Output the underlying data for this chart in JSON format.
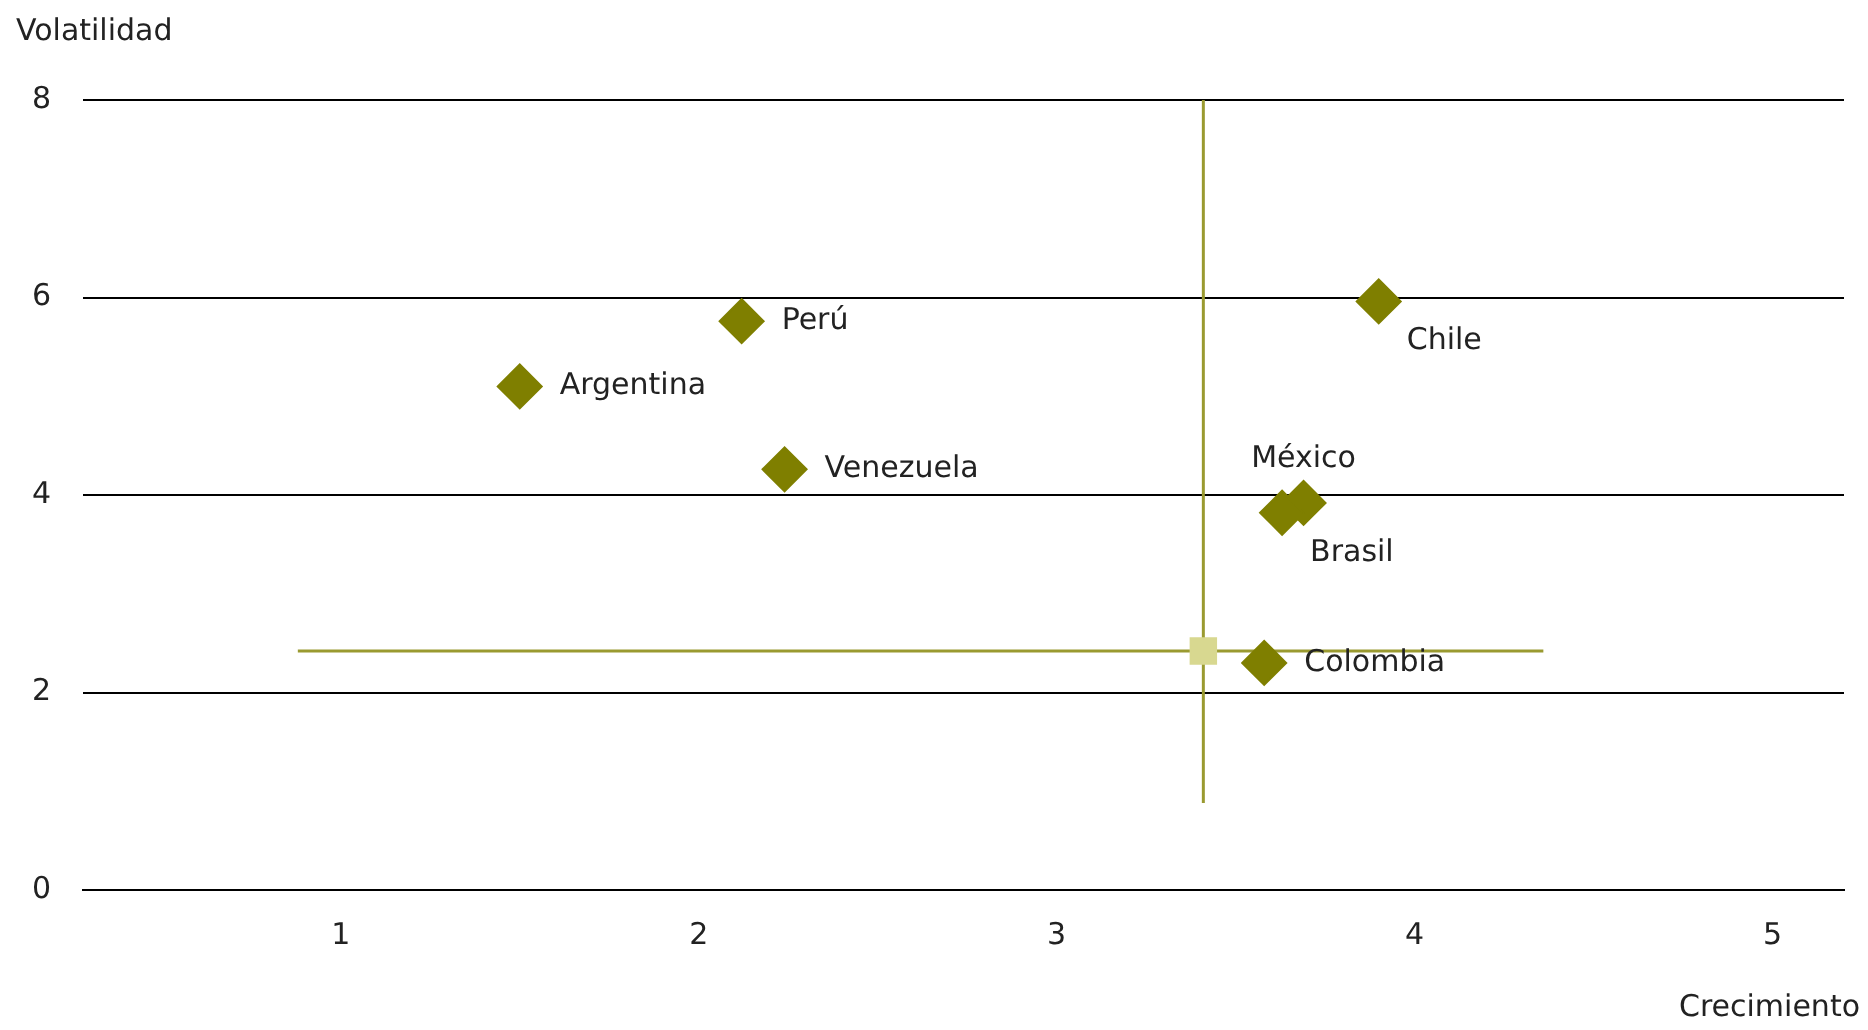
{
  "chart_data": {
    "type": "scatter",
    "xlabel": "Crecimiento",
    "ylabel": "Volatilidad",
    "xlim": [
      0.28,
      5.2
    ],
    "xticks": [
      1,
      2,
      3,
      4,
      5
    ],
    "ylim": [
      0,
      8
    ],
    "yticks": [
      0,
      2,
      4,
      6,
      8
    ],
    "grid": "y",
    "legend": false,
    "series": [
      {
        "color": "#7f7f00",
        "marker": "diamond",
        "x": [
          1.5,
          2.12,
          2.24,
          3.9,
          3.69,
          3.63,
          3.58
        ],
        "values": [
          5.1,
          5.76,
          4.26,
          5.96,
          3.92,
          3.82,
          2.3
        ]
      },
      {
        "color": "#d8d890",
        "marker": "square",
        "x": [
          3.41
        ],
        "values": [
          2.42
        ],
        "xerrors": [
          [
            0.88,
            4.36
          ]
        ],
        "errors": [
          [
            0.88,
            8
          ]
        ]
      }
    ],
    "annotations": [
      {
        "text": "Argentina",
        "x": 1.5,
        "y": 5.1
      },
      {
        "text": "Perú",
        "x": 2.12,
        "y": 5.76
      },
      {
        "text": "Venezuela",
        "x": 2.24,
        "y": 4.26
      },
      {
        "text": "Chile",
        "x": 3.9,
        "y": 5.96
      },
      {
        "text": "Brasil",
        "x": 3.63,
        "y": 3.82
      },
      {
        "text": "México",
        "x": 3.69,
        "y": 3.92
      },
      {
        "text": "Colombia",
        "x": 3.58,
        "y": 2.3
      }
    ]
  }
}
